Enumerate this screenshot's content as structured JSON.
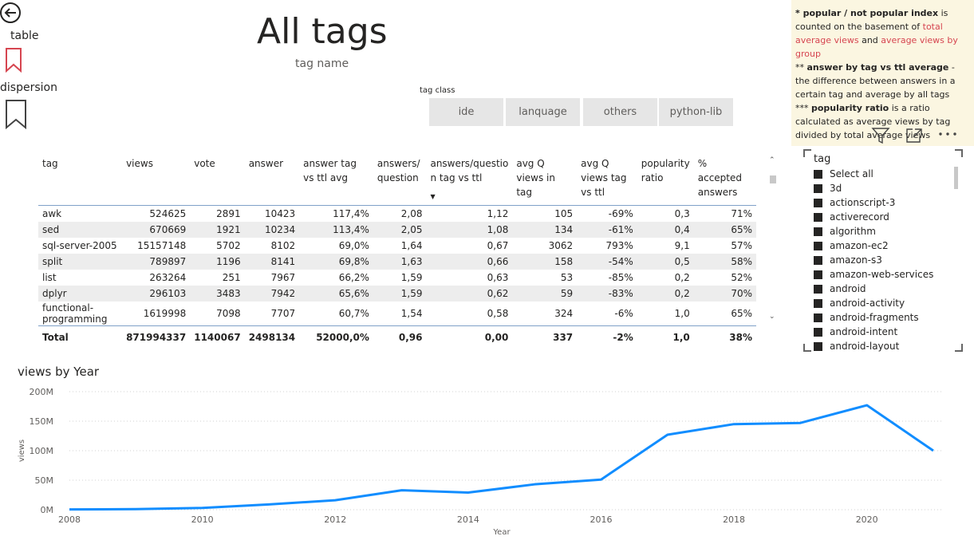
{
  "nav": {
    "table_label": "table",
    "dispersion_label": "dispersion",
    "back_icon": "back-arrow-icon",
    "bookmark_icon": "bookmark-icon",
    "accent": "#d64550"
  },
  "header": {
    "title": "All tags",
    "subtitle": "tag name"
  },
  "tag_class": {
    "title": "tag class",
    "options": [
      "ide",
      "lanquage",
      "others",
      "python-lib"
    ]
  },
  "info": {
    "line1_bold": "* popular / not popular index",
    "line1_rest": " is counted on the basement of ",
    "line1_red1": "total average views",
    "line1_and": " and ",
    "line1_red2": "average views by group",
    "line2_pre": "** ",
    "line2_bold": "answer by tag vs ttl average",
    "line2_rest": " - the difference between answers in a certain tag and average by all tags",
    "line3_pre": "*** ",
    "line3_bold": "popularity ratio",
    "line3_rest": " is a ratio calculated as average views by tag divided by total average views"
  },
  "visual_header_icons": [
    "filter-icon",
    "focus-mode-icon",
    "more-options-icon"
  ],
  "table": {
    "columns": [
      "tag",
      "views",
      "vote",
      "answer",
      "answer tag vs ttl avg",
      "answers/ question",
      "answers/questio n tag vs ttl",
      "avg Q views in tag",
      "avg Q views tag vs ttl",
      "popularity ratio",
      "% accepted answers"
    ],
    "rows": [
      [
        "awk",
        "524625",
        "2891",
        "10423",
        "117,4%",
        "2,08",
        "1,12",
        "105",
        "-69%",
        "0,3",
        "71%"
      ],
      [
        "sed",
        "670669",
        "1921",
        "10234",
        "113,4%",
        "2,05",
        "1,08",
        "134",
        "-61%",
        "0,4",
        "65%"
      ],
      [
        "sql-server-2005",
        "15157148",
        "5702",
        "8102",
        "69,0%",
        "1,64",
        "0,67",
        "3062",
        "793%",
        "9,1",
        "57%"
      ],
      [
        "split",
        "789897",
        "1196",
        "8141",
        "69,8%",
        "1,63",
        "0,66",
        "158",
        "-54%",
        "0,5",
        "58%"
      ],
      [
        "list",
        "263264",
        "251",
        "7967",
        "66,2%",
        "1,59",
        "0,63",
        "53",
        "-85%",
        "0,2",
        "52%"
      ],
      [
        "dplyr",
        "296103",
        "3483",
        "7942",
        "65,6%",
        "1,59",
        "0,62",
        "59",
        "-83%",
        "0,2",
        "70%"
      ],
      [
        "functional-programming",
        "1619998",
        "7098",
        "7707",
        "60,7%",
        "1,54",
        "0,58",
        "324",
        "-6%",
        "1,0",
        "65%"
      ]
    ],
    "total": [
      "Total",
      "871994337",
      "1140067",
      "2498134",
      "52000,0%",
      "0,96",
      "0,00",
      "337",
      "-2%",
      "1,0",
      "38%"
    ]
  },
  "slicer": {
    "title": "tag",
    "items": [
      "Select all",
      "3d",
      "actionscript-3",
      "activerecord",
      "algorithm",
      "amazon-ec2",
      "amazon-s3",
      "amazon-web-services",
      "android",
      "android-activity",
      "android-fragments",
      "android-intent",
      "android-layout"
    ]
  },
  "chart_data": {
    "type": "line",
    "title": "views by Year",
    "xlabel": "Year",
    "ylabel": "views",
    "x": [
      2008,
      2009,
      2010,
      2011,
      2012,
      2013,
      2014,
      2015,
      2016,
      2017,
      2018,
      2019,
      2020,
      2021
    ],
    "series": [
      {
        "values": [
          0.5,
          1,
          3,
          9,
          16,
          33,
          29,
          43,
          51,
          127,
          145,
          147,
          177,
          100
        ]
      }
    ],
    "y_unit": "M",
    "ylim": [
      0,
      200
    ],
    "yticks": [
      "0M",
      "50M",
      "100M",
      "150M",
      "200M"
    ],
    "xticks": [
      "2008",
      "2010",
      "2012",
      "2014",
      "2016",
      "2018",
      "2020"
    ],
    "line_color": "#118dff",
    "grid": true
  }
}
